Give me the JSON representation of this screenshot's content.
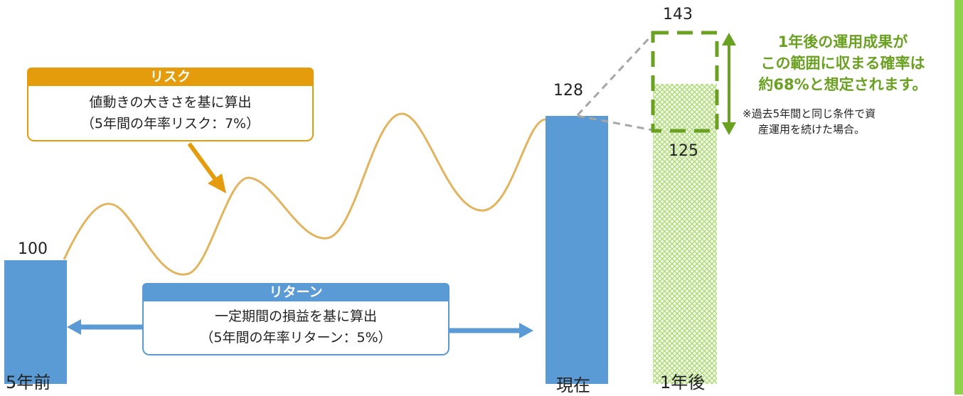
{
  "colors": {
    "bar": "#5b9bd5",
    "risk_accent": "#e59c0c",
    "wave": "#e3b45e",
    "green": "#6aa121",
    "hatch": "#a9d86e",
    "dashed_gray": "#a6a6a6",
    "strip": "#8ed14b"
  },
  "bars": [
    {
      "value": "100",
      "label": "5年前"
    },
    {
      "value": "128",
      "label": "現在"
    },
    {
      "value_top": "143",
      "value_bottom": "125",
      "label": "1年後"
    }
  ],
  "risk_box": {
    "title": "リスク",
    "line1": "値動きの大きさを基に算出",
    "line2": "（5年間の年率リスク：7%）"
  },
  "return_box": {
    "title": "リターン",
    "line1": "一定期間の損益を基に算出",
    "line2": "（5年間の年率リターン：5%）"
  },
  "note": {
    "line1": "1年後の運用成果が",
    "line2": "この範囲に収まる確率は",
    "line3": "約68%と想定されます。",
    "sub1": "※過去5年間と同じ条件で資",
    "sub2": "産運用を続けた場合。"
  }
}
